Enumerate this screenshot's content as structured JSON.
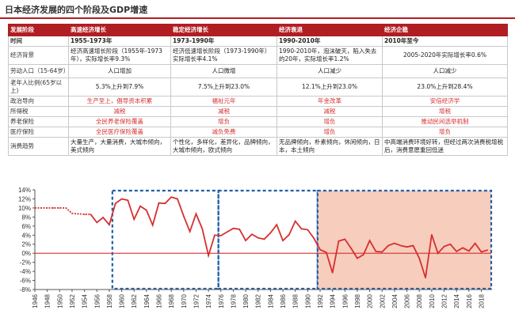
{
  "title": "日本经济发展的四个阶段及GDP增速",
  "table": {
    "header": [
      "发展阶段",
      "高速经济增长",
      "稳定经济增长",
      "经济衰退",
      "经济企稳"
    ],
    "rows": [
      {
        "key": "period",
        "label": "时间",
        "cells": [
          "1955-1973年",
          "1973-1990年",
          "1990-2010年",
          "2010年至今"
        ]
      },
      {
        "key": "background",
        "label": "经济背景",
        "cells": [
          "经济高速增长阶段（1955年-1973年），实际增长率9.3%",
          "经济低速增长阶段（1973-1990年）实际增长率4.1%",
          "1990-2010年，泡沫破灭，陷入失去的20年，实际增长率1.2%",
          "2005-2020年实际增长率0.6%"
        ]
      },
      {
        "key": "labor",
        "label": "劳动人口（15-64岁）",
        "cells": [
          "人口增加",
          "人口微增",
          "人口减少",
          "人口减少"
        ]
      },
      {
        "key": "aging",
        "label": "老年人比例(65岁以上)",
        "cells": [
          "5.3%上升到7.9%",
          "7.5%上升到23.0%",
          "12.1%上升到23.0%",
          "23.0%上升到28.4%"
        ]
      },
      {
        "key": "policy",
        "label": "政治导向",
        "cells": [
          "生产至上，倡导资本积累",
          "福祉元年",
          "年金改革",
          "安倍经济学"
        ]
      },
      {
        "key": "income_tax",
        "label": "所得税",
        "cells": [
          "减税",
          "减税",
          "减税",
          "增税"
        ]
      },
      {
        "key": "pension",
        "label": "养老保险",
        "cells": [
          "全民养老保险覆盖",
          "增负",
          "增负",
          "推动民间选举机制"
        ]
      },
      {
        "key": "medical",
        "label": "医疗保险",
        "cells": [
          "全民医疗保险覆盖",
          "减负免费",
          "增负",
          "增负"
        ]
      },
      {
        "key": "consumption",
        "label": "消费趋势",
        "cells": [
          "大量生产，大量消费，大城市倾向，美式倾向",
          "个性化，多样化，差异化，品牌倾向，大城市倾向，欧式倾向",
          "无品牌倾向，朴素倾向，休闲倾向，日本，本土倾向",
          "中高端消费环境好转，但经过两次消费税增税后，消费意愿重回低迷"
        ]
      }
    ]
  },
  "chart_data": {
    "type": "line",
    "series_color": "#d62f2f",
    "baseline_color": "#d62f2f",
    "x": [
      1946,
      1947,
      1948,
      1949,
      1950,
      1951,
      1952,
      1953,
      1954,
      1955,
      1956,
      1957,
      1958,
      1959,
      1960,
      1961,
      1962,
      1963,
      1964,
      1965,
      1966,
      1967,
      1968,
      1969,
      1970,
      1971,
      1972,
      1973,
      1974,
      1975,
      1976,
      1977,
      1978,
      1979,
      1980,
      1981,
      1982,
      1983,
      1984,
      1985,
      1986,
      1987,
      1988,
      1989,
      1990,
      1991,
      1992,
      1993,
      1994,
      1995,
      1996,
      1997,
      1998,
      1999,
      2000,
      2001,
      2002,
      2003,
      2004,
      2005,
      2006,
      2007,
      2008,
      2009,
      2010,
      2011,
      2012,
      2013,
      2014,
      2015,
      2016,
      2017,
      2018,
      2019
    ],
    "values": [
      10,
      10,
      10,
      10,
      10,
      10,
      8.8,
      8.7,
      8.6,
      8.6,
      6.8,
      7.9,
      6.3,
      11.0,
      12.0,
      11.7,
      7.5,
      10.4,
      9.5,
      6.2,
      11.1,
      11.0,
      12.4,
      12.0,
      8.2,
      4.8,
      8.7,
      5.4,
      -0.5,
      4.0,
      3.9,
      4.7,
      5.5,
      5.3,
      2.8,
      4.2,
      3.4,
      3.1,
      4.5,
      6.3,
      2.8,
      4.1,
      7.1,
      5.4,
      5.2,
      3.3,
      0.8,
      0.2,
      -4.3,
      2.7,
      3.1,
      1.1,
      -1.1,
      -0.3,
      2.8,
      0.4,
      0.3,
      1.7,
      2.2,
      1.7,
      1.4,
      1.7,
      -1.1,
      -5.4,
      4.1,
      0.0,
      1.5,
      2.0,
      0.4,
      1.2,
      0.5,
      2.2,
      0.3,
      0.7
    ],
    "ylim": [
      -8,
      14
    ],
    "yticks": [
      "14%",
      "12%",
      "10%",
      "8%",
      "6%",
      "4%",
      "2%",
      "0%",
      "-2%",
      "-4%",
      "-6%",
      "-8%"
    ],
    "xticks": [
      1946,
      1948,
      1950,
      1952,
      1954,
      1956,
      1958,
      1960,
      1962,
      1964,
      1966,
      1968,
      1970,
      1972,
      1974,
      1976,
      1978,
      1980,
      1982,
      1984,
      1986,
      1988,
      1990,
      1992,
      1994,
      1996,
      1998,
      2000,
      2002,
      2004,
      2006,
      2008,
      2010,
      2012,
      2014,
      2016,
      2018
    ],
    "regions": [
      {
        "from": 1958.5,
        "to": 1975.6,
        "style": "dashed-box"
      },
      {
        "from": 1975.6,
        "to": 1991.6,
        "style": "dashed-box"
      },
      {
        "from": 1991.6,
        "to": 2019.6,
        "style": "shaded-box",
        "fill": "#f7cdbd"
      }
    ],
    "region_border_color": "#1f5fa8",
    "grid": false
  }
}
